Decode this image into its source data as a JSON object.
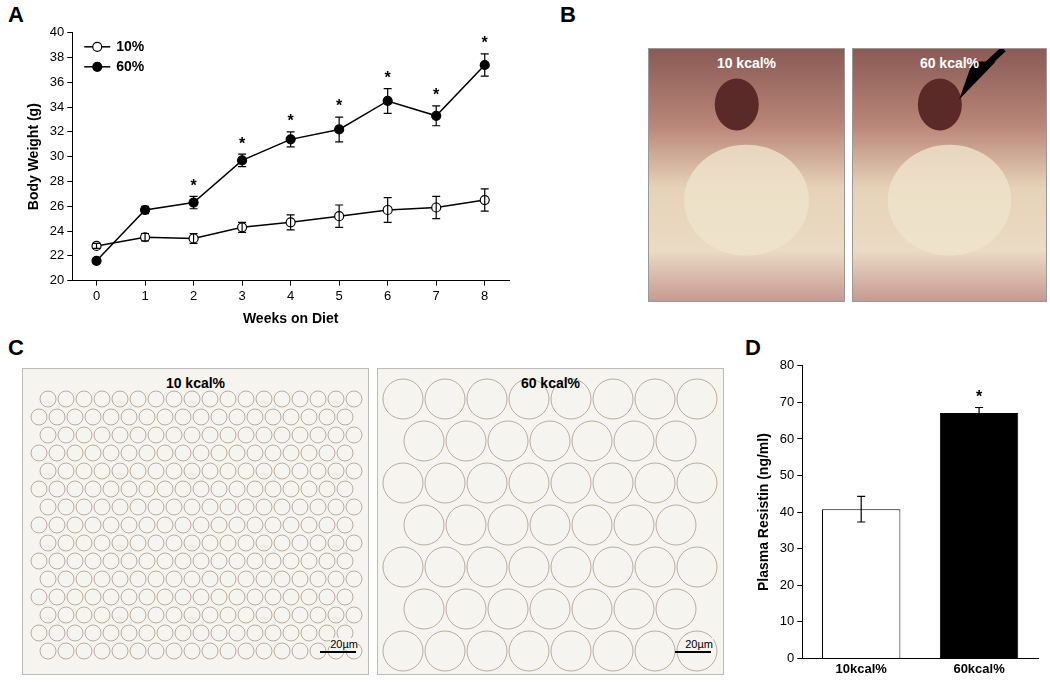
{
  "chart_data": [
    {
      "panel": "A",
      "type": "line",
      "x_label": "Weeks on Diet",
      "y_label": "Body Weight (g)",
      "x": [
        0,
        1,
        2,
        3,
        4,
        5,
        6,
        7,
        8
      ],
      "series": [
        {
          "name": "10%",
          "color": "#ffffff",
          "marker": "circle",
          "values": [
            22.8,
            23.5,
            23.4,
            24.3,
            24.7,
            25.2,
            25.7,
            25.9,
            26.5
          ],
          "errors": [
            0.2,
            0.3,
            0.4,
            0.4,
            0.6,
            0.9,
            1.0,
            0.9,
            0.9
          ]
        },
        {
          "name": "60%",
          "color": "#000000",
          "marker": "circle",
          "values": [
            21.6,
            25.7,
            26.3,
            29.7,
            31.4,
            32.2,
            34.5,
            33.3,
            37.4
          ],
          "errors": [
            0.2,
            0.3,
            0.5,
            0.5,
            0.6,
            1.0,
            1.0,
            0.8,
            0.9
          ]
        }
      ],
      "xlim": [
        -0.5,
        8.5
      ],
      "xticks": [
        0,
        1,
        2,
        3,
        4,
        5,
        6,
        7,
        8
      ],
      "ylim": [
        20,
        40
      ],
      "yticks": [
        20,
        22,
        24,
        26,
        28,
        30,
        32,
        34,
        36,
        38,
        40
      ],
      "grid": false,
      "legend": "upper left",
      "annotations": [
        {
          "x": 2,
          "text": "*"
        },
        {
          "x": 3,
          "text": "*"
        },
        {
          "x": 4,
          "text": "*"
        },
        {
          "x": 5,
          "text": "*"
        },
        {
          "x": 6,
          "text": "*"
        },
        {
          "x": 7,
          "text": "*"
        },
        {
          "x": 8,
          "text": "*"
        }
      ]
    },
    {
      "panel": "D",
      "type": "bar",
      "y_label": "Plasma Resistin (ng/ml)",
      "categories": [
        "10kcal%",
        "60kcal%"
      ],
      "values": [
        40.8,
        67.1
      ],
      "errors": [
        3.5,
        1.5
      ],
      "colors": [
        "#ffffff",
        "#000000"
      ],
      "ylim": [
        0,
        80
      ],
      "yticks": [
        0,
        10,
        20,
        30,
        40,
        50,
        60,
        70,
        80
      ],
      "grid": false,
      "annotations": [
        {
          "category": "60kcal%",
          "text": "*"
        }
      ]
    }
  ],
  "images": [
    {
      "panel": "B",
      "pictures": [
        {
          "caption": "10 kcal%"
        },
        {
          "caption": "60 kcal%"
        }
      ]
    },
    {
      "panel": "C",
      "pictures": [
        {
          "caption": "10 kcal%",
          "scale_bar": "20µm"
        },
        {
          "caption": "60 kcal%",
          "scale_bar": "20µm"
        }
      ]
    }
  ]
}
